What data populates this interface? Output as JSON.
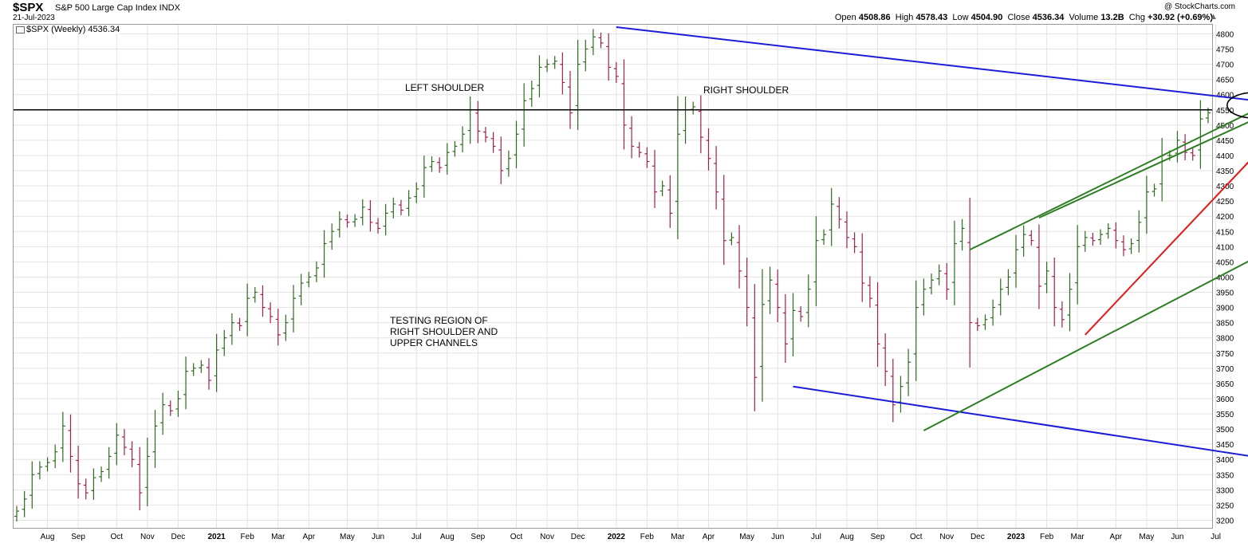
{
  "header": {
    "symbol": "$SPX",
    "name": "S&P 500 Large Cap Index INDX",
    "date": "21-Jul-2023",
    "brand": "@ StockCharts.com",
    "ohlc": {
      "open_label": "Open",
      "open": "4508.86",
      "high_label": "High",
      "high": "4578.43",
      "low_label": "Low",
      "low": "4504.90",
      "close_label": "Close",
      "close": "4536.34",
      "volume_label": "Volume",
      "volume": "13.2B",
      "chg_label": "Chg",
      "chg": "+30.92 (+0.69%)"
    }
  },
  "legend": {
    "label": "$SPX (Weekly) 4536.34"
  },
  "annotations": {
    "left_shoulder": "LEFT SHOULDER",
    "right_shoulder": "RIGHT SHOULDER",
    "testing": "TESTING REGION OF\nRIGHT SHOULDER AND\nUPPER CHANNELS"
  },
  "colors": {
    "up": "#2e6b1e",
    "down": "#a0204a",
    "channel_blue": "#1c1cd6",
    "channel_green": "#2e7d24",
    "trend_red": "#e31a1a",
    "level": "#000000",
    "grid": "#e3e3e3"
  },
  "chart_data": {
    "type": "ohlc",
    "title": "$SPX (Weekly)",
    "y_range": [
      3175,
      4830
    ],
    "y_ticks": [
      3200,
      3250,
      3300,
      3350,
      3400,
      3450,
      3500,
      3550,
      3600,
      3650,
      3700,
      3750,
      3800,
      3850,
      3900,
      3950,
      4000,
      4050,
      4100,
      4150,
      4200,
      4250,
      4300,
      4350,
      4400,
      4450,
      4500,
      4550,
      4600,
      4650,
      4700,
      4750,
      4800
    ],
    "x_labels": [
      {
        "label": "Aug",
        "week": 4
      },
      {
        "label": "Sep",
        "week": 8
      },
      {
        "label": "Oct",
        "week": 13
      },
      {
        "label": "Nov",
        "week": 17
      },
      {
        "label": "Dec",
        "week": 21
      },
      {
        "label": "2021",
        "week": 26,
        "bold": true
      },
      {
        "label": "Feb",
        "week": 30
      },
      {
        "label": "Mar",
        "week": 34
      },
      {
        "label": "Apr",
        "week": 38
      },
      {
        "label": "May",
        "week": 43
      },
      {
        "label": "Jun",
        "week": 47
      },
      {
        "label": "Jul",
        "week": 52
      },
      {
        "label": "Aug",
        "week": 56
      },
      {
        "label": "Sep",
        "week": 60
      },
      {
        "label": "Oct",
        "week": 65
      },
      {
        "label": "Nov",
        "week": 69
      },
      {
        "label": "Dec",
        "week": 73
      },
      {
        "label": "2022",
        "week": 78,
        "bold": true
      },
      {
        "label": "Feb",
        "week": 82
      },
      {
        "label": "Mar",
        "week": 86
      },
      {
        "label": "Apr",
        "week": 90
      },
      {
        "label": "May",
        "week": 95
      },
      {
        "label": "Jun",
        "week": 99
      },
      {
        "label": "Jul",
        "week": 104
      },
      {
        "label": "Aug",
        "week": 108
      },
      {
        "label": "Sep",
        "week": 112
      },
      {
        "label": "Oct",
        "week": 117
      },
      {
        "label": "Nov",
        "week": 121
      },
      {
        "label": "Dec",
        "week": 125
      },
      {
        "label": "2023",
        "week": 130,
        "bold": true
      },
      {
        "label": "Feb",
        "week": 134
      },
      {
        "label": "Mar",
        "week": 138
      },
      {
        "label": "Apr",
        "week": 143
      },
      {
        "label": "May",
        "week": 147
      },
      {
        "label": "Jun",
        "week": 151
      },
      {
        "label": "Jul",
        "week": 156
      }
    ],
    "closes": [
      3230,
      3270,
      3350,
      3375,
      3390,
      3425,
      3510,
      3410,
      3320,
      3290,
      3340,
      3360,
      3410,
      3480,
      3440,
      3400,
      3290,
      3410,
      3510,
      3580,
      3560,
      3600,
      3690,
      3700,
      3710,
      3660,
      3760,
      3800,
      3850,
      3840,
      3930,
      3950,
      3900,
      3870,
      3810,
      3850,
      3930,
      3980,
      4000,
      4030,
      4110,
      4150,
      4190,
      4180,
      4190,
      4230,
      4180,
      4160,
      4210,
      4240,
      4220,
      4260,
      4290,
      4360,
      4380,
      4360,
      4410,
      4430,
      4470,
      4550,
      4480,
      4460,
      4430,
      4350,
      4390,
      4470,
      4580,
      4620,
      4690,
      4700,
      4710,
      4640,
      4540,
      4700,
      4750,
      4790,
      4770,
      4690,
      4660,
      4500,
      4430,
      4410,
      4380,
      4280,
      4300,
      4210,
      4470,
      4550,
      4560,
      4460,
      4390,
      4280,
      4120,
      4130,
      4020,
      3900,
      3670,
      3910,
      3990,
      3900,
      3780,
      3890,
      3870,
      3960,
      4120,
      4140,
      4240,
      4190,
      4130,
      4100,
      3980,
      3930,
      3780,
      3690,
      3580,
      3640,
      3720,
      3900,
      3960,
      3990,
      4020,
      3960,
      4110,
      4160,
      3850,
      3840,
      3860,
      3900,
      3960,
      4000,
      4090,
      4140,
      4120,
      3970,
      4020,
      3900,
      3860,
      3960,
      4100,
      4130,
      4120,
      4140,
      4160,
      4120,
      4090,
      4110,
      4180,
      4280,
      4290,
      4400,
      4400,
      4450,
      4410,
      4400,
      4520,
      4540
    ],
    "trendlines": [
      {
        "name": "upper-blue",
        "color": "channel_blue",
        "from": [
          78,
          4822
        ],
        "to": [
          162,
          4578
        ]
      },
      {
        "name": "lower-blue",
        "color": "channel_blue",
        "from": [
          101,
          3640
        ],
        "to": [
          162,
          3405
        ]
      },
      {
        "name": "neckline",
        "color": "level",
        "from": [
          0,
          4550
        ],
        "to": [
          162,
          4550
        ]
      },
      {
        "name": "green-lower",
        "color": "channel_green",
        "from": [
          118,
          3495
        ],
        "to": [
          162,
          4075
        ]
      },
      {
        "name": "green-upper-a",
        "color": "channel_green",
        "from": [
          124,
          4090
        ],
        "to": [
          162,
          4560
        ]
      },
      {
        "name": "green-upper-b",
        "color": "channel_green",
        "from": [
          133,
          4195
        ],
        "to": [
          162,
          4530
        ]
      },
      {
        "name": "red-trend",
        "color": "trend_red",
        "from": [
          139,
          3810
        ],
        "to": [
          162,
          4425
        ]
      }
    ],
    "highlight": {
      "shape": "ellipse",
      "center": [
        161,
        4565
      ]
    }
  }
}
